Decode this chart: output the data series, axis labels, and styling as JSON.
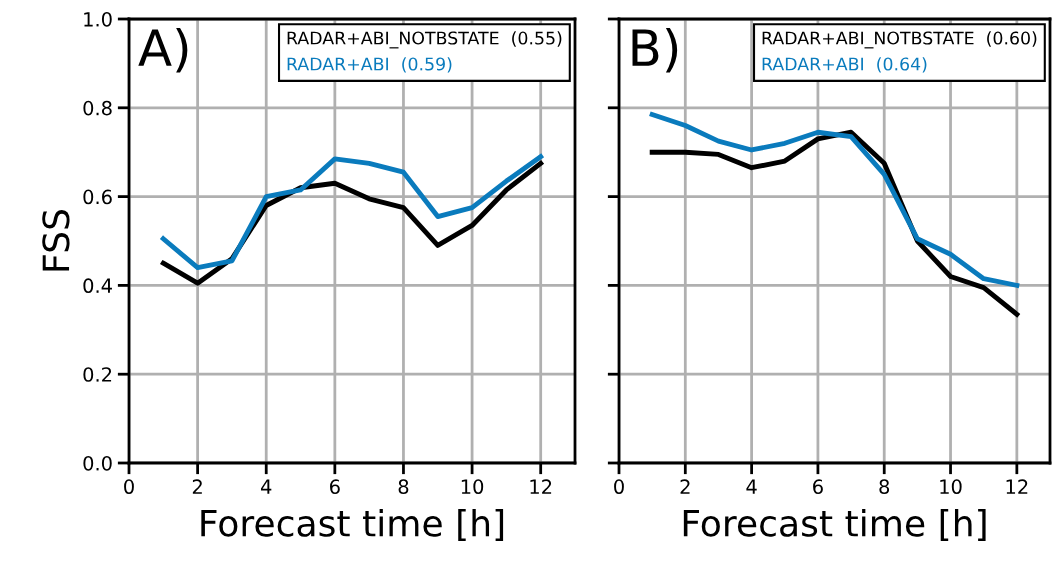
{
  "chart_data": [
    {
      "type": "line",
      "title": "A)",
      "xlabel": "Forecast time [h]",
      "ylabel": "FSS",
      "x": [
        1,
        2,
        3,
        4,
        5,
        6,
        7,
        8,
        9,
        10,
        11,
        12
      ],
      "xlim": [
        0,
        13
      ],
      "ylim": [
        0,
        1
      ],
      "xticks": [
        0,
        2,
        4,
        6,
        8,
        10,
        12
      ],
      "yticks": [
        {
          "value": 0,
          "label": "0.0"
        },
        0.2,
        0.4,
        0.6,
        0.8,
        {
          "value": 1,
          "label": "1.0"
        }
      ],
      "grid": true,
      "legend": "top right",
      "series": [
        {
          "name": "RADAR+ABI_NOTBSTATE  (0.55)",
          "color": "#000000",
          "values": [
            0.45,
            0.405,
            0.46,
            0.58,
            0.62,
            0.63,
            0.595,
            0.575,
            0.49,
            0.535,
            0.615,
            0.675
          ]
        },
        {
          "name": "RADAR+ABI  (0.59)",
          "color": "#0a7bbd",
          "values": [
            0.505,
            0.44,
            0.455,
            0.6,
            0.615,
            0.685,
            0.675,
            0.655,
            0.555,
            0.575,
            0.635,
            0.69
          ]
        }
      ]
    },
    {
      "type": "line",
      "title": "B)",
      "xlabel": "Forecast time [h]",
      "x": [
        1,
        2,
        3,
        4,
        5,
        6,
        7,
        8,
        9,
        10,
        11,
        12
      ],
      "xlim": [
        0,
        13
      ],
      "ylim": [
        0,
        1
      ],
      "xticks": [
        0,
        2,
        4,
        6,
        8,
        10,
        12
      ],
      "yticks": [
        0,
        0.2,
        0.4,
        0.6,
        0.8,
        1
      ],
      "tick_labels": "x",
      "grid": true,
      "legend": "top right",
      "series": [
        {
          "name": "RADAR+ABI_NOTBSTATE  (0.60)",
          "color": "#000000",
          "values": [
            0.7,
            0.7,
            0.695,
            0.665,
            0.68,
            0.73,
            0.745,
            0.675,
            0.5,
            0.42,
            0.395,
            0.335
          ]
        },
        {
          "name": "RADAR+ABI  (0.64)",
          "color": "#0a7bbd",
          "values": [
            0.785,
            0.76,
            0.725,
            0.705,
            0.72,
            0.745,
            0.735,
            0.65,
            0.505,
            0.47,
            0.415,
            0.4
          ]
        }
      ]
    }
  ]
}
